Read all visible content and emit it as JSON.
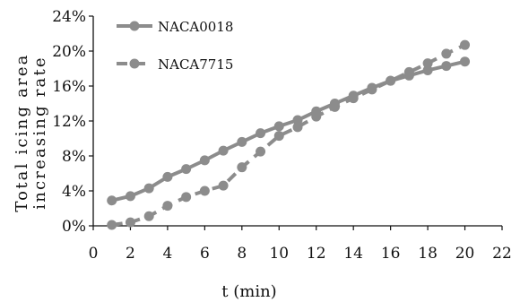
{
  "chart_data": {
    "type": "line",
    "title": "",
    "xlabel": "t (min)",
    "ylabel_lines": [
      "Total icing area",
      "increasing rate"
    ],
    "xlim": [
      0,
      22
    ],
    "ylim": [
      0,
      24
    ],
    "x_ticks": [
      0,
      2,
      4,
      6,
      8,
      10,
      12,
      14,
      16,
      18,
      20,
      22
    ],
    "y_ticks": [
      "0%",
      "4%",
      "8%",
      "12%",
      "16%",
      "20%",
      "24%"
    ],
    "y_tick_values": [
      0,
      4,
      8,
      12,
      16,
      20,
      24
    ],
    "grid": false,
    "legend_position": "top-left",
    "series": [
      {
        "name": "NACA0018",
        "style": "solid",
        "color": "#8c8c8c",
        "x": [
          1,
          2,
          3,
          4,
          5,
          6,
          7,
          8,
          9,
          10,
          11,
          12,
          13,
          14,
          15,
          16,
          17,
          18,
          19,
          20
        ],
        "values": [
          2.9,
          3.4,
          4.3,
          5.6,
          6.5,
          7.5,
          8.6,
          9.6,
          10.6,
          11.4,
          12.1,
          13.1,
          14.0,
          14.9,
          15.8,
          16.6,
          17.2,
          17.8,
          18.3,
          18.8
        ]
      },
      {
        "name": "NACA7715",
        "style": "dashed",
        "color": "#8c8c8c",
        "x": [
          1,
          2,
          3,
          4,
          5,
          6,
          7,
          8,
          9,
          10,
          11,
          12,
          13,
          14,
          15,
          16,
          17,
          18,
          19,
          20
        ],
        "values": [
          0.1,
          0.4,
          1.1,
          2.3,
          3.3,
          4.0,
          4.6,
          6.7,
          8.5,
          10.3,
          11.3,
          12.5,
          13.6,
          14.6,
          15.6,
          16.6,
          17.6,
          18.6,
          19.7,
          20.7
        ]
      }
    ]
  }
}
